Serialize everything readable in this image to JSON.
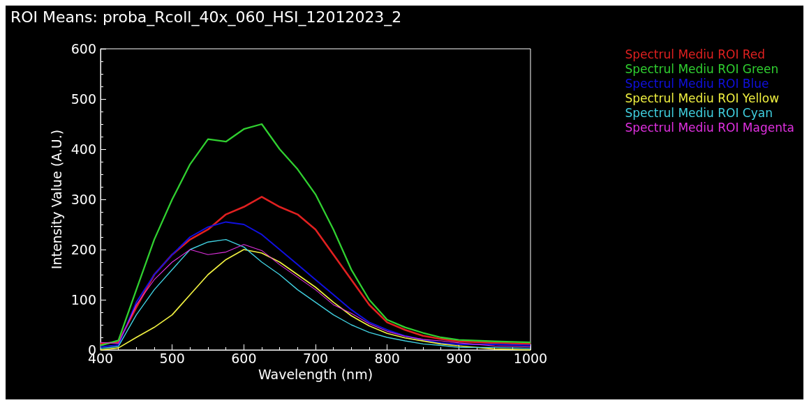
{
  "chart_data": {
    "type": "line",
    "title": "ROI Means: proba_Rcoll_40x_060_HSI_12012023_2",
    "xlabel": "Wavelength (nm)",
    "ylabel": "Intensity Value (A.U.)",
    "x": [
      400,
      425,
      450,
      475,
      500,
      525,
      550,
      575,
      600,
      625,
      650,
      675,
      700,
      725,
      750,
      775,
      800,
      825,
      850,
      875,
      900,
      950,
      1000
    ],
    "series": [
      {
        "name": "Spectrul Mediu ROI Red",
        "color": "#e02020",
        "values": [
          12,
          16,
          85,
          150,
          190,
          220,
          240,
          270,
          285,
          305,
          285,
          270,
          240,
          190,
          140,
          90,
          55,
          40,
          28,
          22,
          17,
          14,
          12
        ]
      },
      {
        "name": "Spectrul Mediu ROI Green",
        "color": "#30d030",
        "values": [
          9,
          19,
          120,
          220,
          300,
          370,
          420,
          415,
          440,
          450,
          400,
          360,
          310,
          240,
          160,
          100,
          60,
          45,
          34,
          25,
          20,
          17,
          15
        ]
      },
      {
        "name": "Spectrul Mediu ROI Blue",
        "color": "#1010e0",
        "values": [
          6,
          10,
          95,
          150,
          190,
          225,
          245,
          255,
          250,
          230,
          200,
          170,
          140,
          110,
          80,
          55,
          40,
          28,
          20,
          14,
          11,
          11,
          9
        ]
      },
      {
        "name": "Spectrul Mediu ROI Yellow",
        "color": "#f0f040",
        "values": [
          0,
          4,
          25,
          45,
          70,
          110,
          150,
          180,
          200,
          193,
          175,
          150,
          125,
          95,
          68,
          48,
          33,
          24,
          18,
          12,
          8,
          2,
          0
        ]
      },
      {
        "name": "Spectrul Mediu ROI Cyan",
        "color": "#40d0e0",
        "values": [
          3,
          7,
          70,
          120,
          160,
          200,
          215,
          220,
          205,
          175,
          150,
          120,
          95,
          70,
          50,
          35,
          25,
          18,
          12,
          9,
          5,
          5,
          3
        ]
      },
      {
        "name": "Spectrul Mediu ROI Magenta",
        "color": "#e030e0",
        "values": [
          15,
          13,
          90,
          140,
          175,
          200,
          190,
          195,
          210,
          198,
          170,
          145,
          120,
          90,
          73,
          52,
          37,
          27,
          21,
          18,
          14,
          8,
          6
        ]
      }
    ],
    "xlim": [
      400,
      1000
    ],
    "xticks": [
      400,
      500,
      600,
      700,
      800,
      900,
      {
        "value": 1000,
        "label": "1000"
      }
    ],
    "ylim": [
      0,
      600
    ],
    "yticks": [
      0,
      100,
      200,
      300,
      400,
      500,
      600
    ],
    "grid": false,
    "legend": "right",
    "marker": "none",
    "line_style": "solid"
  }
}
